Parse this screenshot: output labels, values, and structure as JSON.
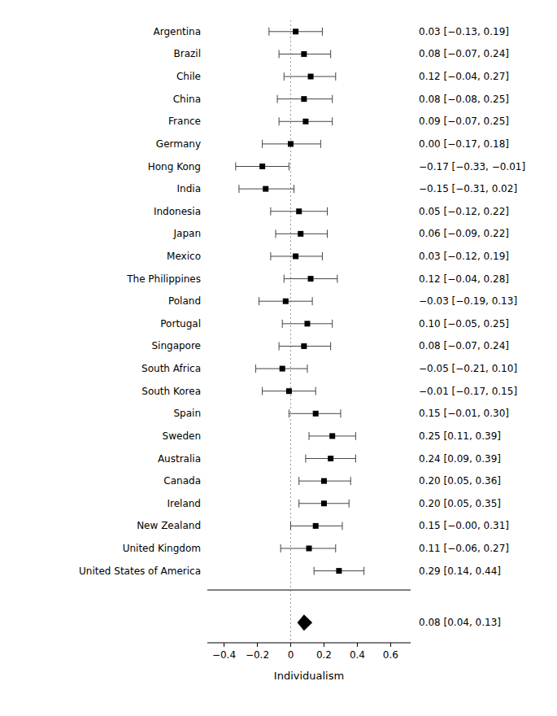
{
  "chart_data": {
    "type": "forest",
    "xlabel": "Individualism",
    "categories": [
      "Argentina",
      "Brazil",
      "Chile",
      "China",
      "France",
      "Germany",
      "Hong Kong",
      "India",
      "Indonesia",
      "Japan",
      "Mexico",
      "The Philippines",
      "Poland",
      "Portugal",
      "Singapore",
      "South Africa",
      "South Korea",
      "Spain",
      "Sweden",
      "Australia",
      "Canada",
      "Ireland",
      "New Zealand",
      "United Kingdom",
      "United States of America"
    ],
    "values": [
      0.03,
      0.08,
      0.12,
      0.08,
      0.09,
      0.0,
      -0.17,
      -0.15,
      0.05,
      0.06,
      0.03,
      0.12,
      -0.03,
      0.1,
      0.08,
      -0.05,
      -0.01,
      0.15,
      0.25,
      0.24,
      0.2,
      0.2,
      0.15,
      0.11,
      0.29
    ],
    "ci_low": [
      -0.13,
      -0.07,
      -0.04,
      -0.08,
      -0.07,
      -0.17,
      -0.33,
      -0.31,
      -0.12,
      -0.09,
      -0.12,
      -0.04,
      -0.19,
      -0.05,
      -0.07,
      -0.21,
      -0.17,
      -0.01,
      0.11,
      0.09,
      0.05,
      0.05,
      -0.0,
      -0.06,
      0.14
    ],
    "ci_high": [
      0.19,
      0.24,
      0.27,
      0.25,
      0.25,
      0.18,
      -0.01,
      0.02,
      0.22,
      0.22,
      0.19,
      0.28,
      0.13,
      0.25,
      0.24,
      0.1,
      0.15,
      0.3,
      0.39,
      0.39,
      0.36,
      0.35,
      0.31,
      0.27,
      0.44
    ],
    "value_labels": [
      "0.03 [−0.13, 0.19]",
      "0.08 [−0.07, 0.24]",
      "0.12 [−0.04, 0.27]",
      "0.08 [−0.08, 0.25]",
      "0.09 [−0.07, 0.25]",
      "0.00 [−0.17, 0.18]",
      "−0.17 [−0.33, −0.01]",
      "−0.15 [−0.31, 0.02]",
      "0.05 [−0.12, 0.22]",
      "0.06 [−0.09, 0.22]",
      "0.03 [−0.12, 0.19]",
      "0.12 [−0.04, 0.28]",
      "−0.03 [−0.19, 0.13]",
      "0.10 [−0.05, 0.25]",
      "0.08 [−0.07, 0.24]",
      "−0.05 [−0.21, 0.10]",
      "−0.01 [−0.17, 0.15]",
      "0.15 [−0.01, 0.30]",
      "0.25 [0.11, 0.39]",
      "0.24 [0.09, 0.39]",
      "0.20 [0.05, 0.36]",
      "0.20 [0.05, 0.35]",
      "0.15 [−0.00, 0.31]",
      "0.11 [−0.06, 0.27]",
      "0.29 [0.14, 0.44]"
    ],
    "pooled": {
      "value": 0.08,
      "ci_low": 0.04,
      "ci_high": 0.13,
      "value_label": "0.08 [0.04, 0.13]"
    },
    "reference_x": 0,
    "xlim": [
      -0.5,
      0.72
    ],
    "xticks": [
      {
        "value": -0.4,
        "label": "−0.4"
      },
      {
        "value": -0.2,
        "label": "−0.2"
      },
      0,
      0.2,
      0.4,
      0.6
    ]
  }
}
